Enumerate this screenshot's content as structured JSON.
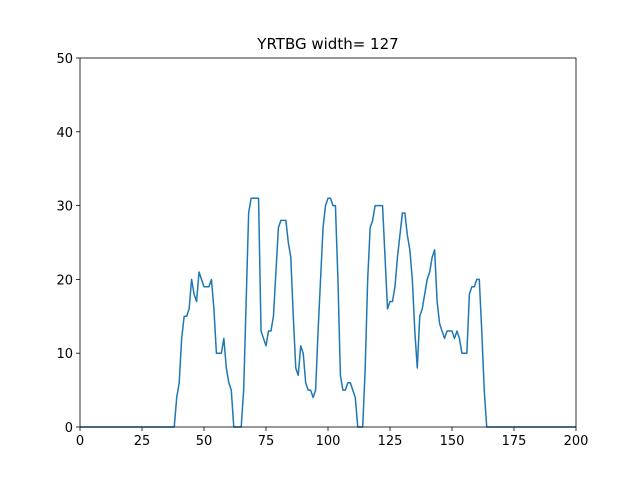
{
  "chart_data": {
    "type": "line",
    "title": "YRTBG width= 127",
    "x": [
      0,
      38,
      39,
      40,
      41,
      42,
      43,
      44,
      45,
      46,
      47,
      48,
      49,
      50,
      51,
      52,
      53,
      54,
      55,
      56,
      57,
      58,
      59,
      60,
      61,
      62,
      63,
      64,
      65,
      66,
      67,
      68,
      69,
      70,
      71,
      72,
      73,
      74,
      75,
      76,
      77,
      78,
      79,
      80,
      81,
      82,
      83,
      84,
      85,
      86,
      87,
      88,
      89,
      90,
      91,
      92,
      93,
      94,
      95,
      96,
      97,
      98,
      99,
      100,
      101,
      102,
      103,
      104,
      105,
      106,
      107,
      108,
      109,
      110,
      111,
      112,
      113,
      114,
      115,
      116,
      117,
      118,
      119,
      120,
      121,
      122,
      123,
      124,
      125,
      126,
      127,
      128,
      129,
      130,
      131,
      132,
      133,
      134,
      135,
      136,
      137,
      138,
      139,
      140,
      141,
      142,
      143,
      144,
      145,
      146,
      147,
      148,
      149,
      150,
      151,
      152,
      153,
      154,
      155,
      156,
      157,
      158,
      159,
      160,
      161,
      162,
      163,
      164,
      200
    ],
    "series": [
      {
        "color": "#1f77b4",
        "values": [
          0,
          0,
          4,
          6,
          12,
          15,
          15,
          16,
          20,
          18,
          17,
          21,
          20,
          19,
          19,
          19,
          20,
          16,
          10,
          10,
          10,
          12,
          8,
          6,
          5,
          0,
          0,
          0,
          0,
          5,
          17,
          29,
          31,
          31,
          31,
          31,
          13,
          12,
          11,
          13,
          13,
          15,
          21,
          27,
          28,
          28,
          28,
          25,
          23,
          15,
          8,
          7,
          11,
          10,
          6,
          5,
          5,
          4,
          5,
          13,
          20,
          27,
          30,
          31,
          31,
          30,
          30,
          20,
          7,
          5,
          5,
          6,
          6,
          5,
          4,
          0,
          0,
          0,
          8,
          20,
          27,
          28,
          30,
          30,
          30,
          30,
          23,
          16,
          17,
          17,
          19,
          23,
          26,
          29,
          29,
          26,
          24,
          20,
          13,
          8,
          15,
          16,
          18,
          20,
          21,
          23,
          24,
          17,
          14,
          13,
          12,
          13,
          13,
          13,
          12,
          13,
          12,
          10,
          10,
          10,
          18,
          19,
          19,
          20,
          20,
          13,
          5,
          0,
          0
        ]
      }
    ],
    "xlim": [
      0,
      200
    ],
    "xticks": [
      0,
      25,
      50,
      75,
      100,
      125,
      150,
      175,
      200
    ],
    "ylim": [
      0,
      50
    ],
    "yticks": [
      0,
      10,
      20,
      30,
      40,
      50
    ]
  }
}
